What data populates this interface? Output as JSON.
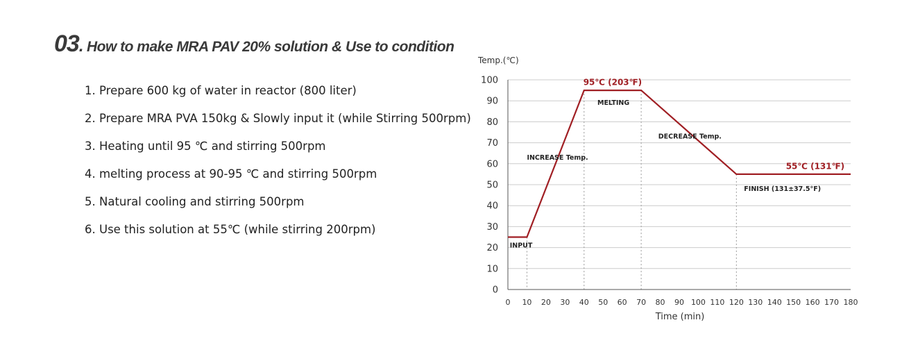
{
  "heading": {
    "number": "03",
    "dot": ".",
    "text": "How to make MRA PAV 20% solution & Use to condition"
  },
  "steps": [
    "1. Prepare 600 kg of water in reactor (800 liter)",
    "2. Prepare MRA PVA 150kg & Slowly input it (while Stirring 500rpm)",
    "3. Heating until 95 ℃ and stirring 500rpm",
    "4. melting process at 90-95 ℃ and stirring 500rpm",
    "5. Natural cooling and stirring 500rpm",
    "6. Use this solution at 55℃ (while stirring 200rpm)"
  ],
  "chart_data": {
    "type": "line",
    "ylabel": "Temp.(℃)",
    "xlabel": "Time (min)",
    "xlim": [
      0,
      180
    ],
    "ylim": [
      0,
      100
    ],
    "x_ticks": [
      0,
      10,
      20,
      30,
      40,
      50,
      60,
      70,
      80,
      90,
      100,
      110,
      120,
      130,
      140,
      150,
      160,
      170,
      180
    ],
    "y_ticks": [
      0,
      10,
      20,
      30,
      40,
      50,
      60,
      70,
      80,
      90,
      100
    ],
    "grid": "horizontal",
    "colors": {
      "line": "#a01f24",
      "grid": "#cccccc",
      "axis": "#555555",
      "guide": "#999999"
    },
    "series": [
      {
        "x": [
          0,
          10,
          40,
          70,
          120,
          180
        ],
        "y": [
          25,
          25,
          95,
          95,
          55,
          55
        ]
      }
    ],
    "guides_x": [
      10,
      40,
      70,
      120
    ],
    "annotations": [
      {
        "text": "INPUT",
        "x": 1,
        "y": 20,
        "style": "plain"
      },
      {
        "text": "INCREASE Temp.",
        "x": 10,
        "y": 62,
        "style": "plain"
      },
      {
        "text": "MELTING",
        "x": 47,
        "y": 88,
        "style": "plain"
      },
      {
        "text": "DECREASE Temp.",
        "x": 79,
        "y": 72,
        "style": "plain"
      },
      {
        "text": "FINISH (131±37.5°F)",
        "x": 124,
        "y": 47,
        "style": "plain"
      },
      {
        "text": "95℃ (203℉)",
        "x": 55,
        "y": 97.5,
        "style": "accent",
        "anchor": "middle"
      },
      {
        "text": "55℃ (131℉)",
        "x": 146,
        "y": 57.5,
        "style": "accent",
        "anchor": "start"
      }
    ]
  }
}
